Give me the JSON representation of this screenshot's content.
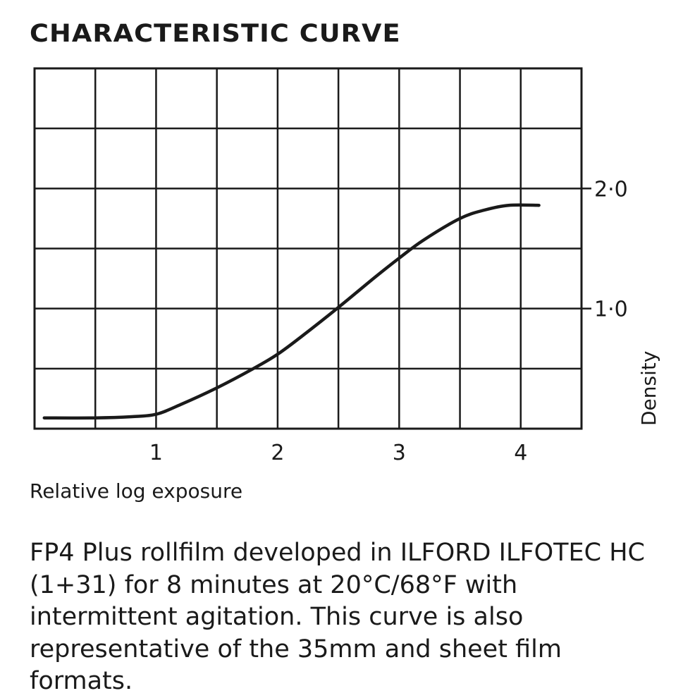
{
  "caption": "FP4 Plus rollfilm developed in ILFORD ILFOTEC HC (1+31) for 8 minutes at 20°C/68°F with intermittent agitation. This curve is also representative of the 35mm and sheet film formats.",
  "colors": {
    "ink": "#1a1a1a",
    "background": "#ffffff"
  },
  "chart_data": {
    "type": "line",
    "title": "CHARACTERISTIC CURVE",
    "xlabel": "Relative log exposure",
    "ylabel": "Density",
    "xlim": [
      0,
      4.5
    ],
    "ylim": [
      0,
      3.0
    ],
    "x_ticks": [
      1,
      2,
      3,
      4
    ],
    "x_tick_labels": [
      "1",
      "2",
      "3",
      "4"
    ],
    "y_ticks": [
      1.0,
      2.0
    ],
    "y_tick_labels": [
      "1·0",
      "2·0"
    ],
    "y_axis_side": "right",
    "grid": true,
    "grid_step_x": 0.5,
    "grid_step_y": 0.5,
    "series": [
      {
        "x": [
          0.08,
          0.5,
          0.8,
          1.0,
          1.2,
          1.5,
          1.8,
          2.0,
          2.2,
          2.5,
          2.8,
          3.0,
          3.2,
          3.5,
          3.7,
          3.9,
          4.15
        ],
        "y": [
          0.09,
          0.09,
          0.1,
          0.12,
          0.2,
          0.34,
          0.5,
          0.62,
          0.77,
          1.01,
          1.26,
          1.42,
          1.57,
          1.75,
          1.82,
          1.86,
          1.86
        ]
      }
    ]
  }
}
